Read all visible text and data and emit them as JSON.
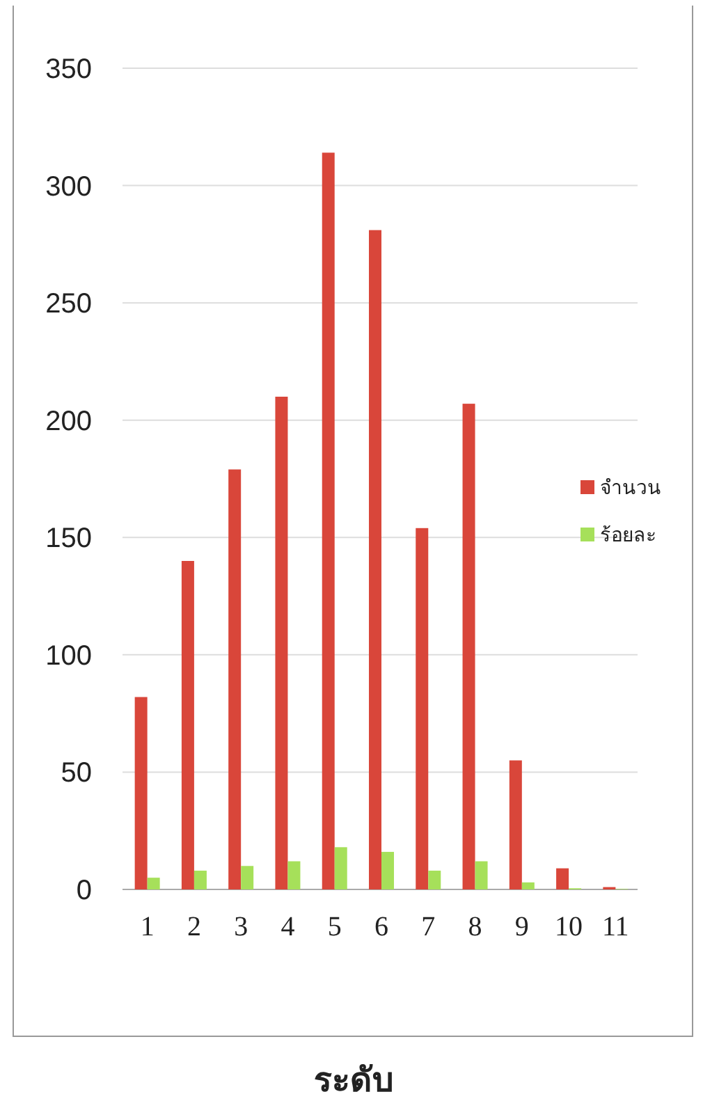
{
  "chart_data": {
    "type": "bar",
    "xlabel": "ระดับ",
    "categories": [
      "1",
      "2",
      "3",
      "4",
      "5",
      "6",
      "7",
      "8",
      "9",
      "10",
      "11"
    ],
    "series": [
      {
        "name": "จำนวน",
        "color": "#d9463a",
        "values": [
          82,
          140,
          179,
          210,
          314,
          281,
          154,
          207,
          55,
          9,
          1
        ]
      },
      {
        "name": "ร้อยละ",
        "color": "#a6e05a",
        "values": [
          5,
          8,
          10,
          12,
          18,
          16,
          8,
          12,
          3,
          0.5,
          0.2
        ]
      }
    ],
    "ylim": [
      0,
      350
    ],
    "yticks": [
      0,
      50,
      100,
      150,
      200,
      250,
      300,
      350
    ],
    "grid": "y",
    "legend": "right"
  }
}
